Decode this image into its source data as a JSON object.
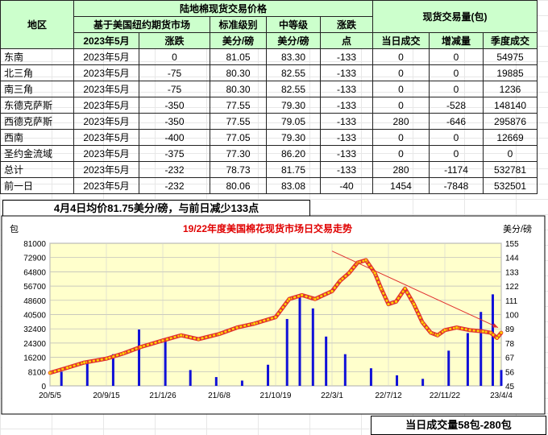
{
  "table": {
    "group1": "陆地棉现货交易价格",
    "group2": "现货交易量(包)",
    "headers1": [
      "地区",
      "基于美国纽约期货市场",
      "标准级别",
      "中等级",
      "涨跌"
    ],
    "headers2": [
      "2023年5月",
      "涨跌",
      "美分/磅",
      "美分/磅",
      "点",
      "当日成交",
      "增减量",
      "季度成交"
    ],
    "rows": [
      [
        "东南",
        "2023年5月",
        "0",
        "81.05",
        "83.30",
        "-133",
        "0",
        "0",
        "54975"
      ],
      [
        "北三角",
        "2023年5月",
        "-75",
        "80.30",
        "82.55",
        "-133",
        "0",
        "0",
        "19885"
      ],
      [
        "南三角",
        "2023年5月",
        "-75",
        "80.30",
        "82.55",
        "-133",
        "0",
        "0",
        "1236"
      ],
      [
        "东德克萨斯",
        "2023年5月",
        "-350",
        "77.55",
        "79.30",
        "-133",
        "0",
        "-528",
        "148140"
      ],
      [
        "西德克萨斯",
        "2023年5月",
        "-350",
        "77.55",
        "79.05",
        "-133",
        "280",
        "-646",
        "295876"
      ],
      [
        "西南",
        "2023年5月",
        "-400",
        "77.05",
        "79.30",
        "-133",
        "0",
        "0",
        "12669"
      ],
      [
        "圣约金流域",
        "2023年5月",
        "-375",
        "77.30",
        "86.20",
        "-133",
        "0",
        "0",
        "0"
      ],
      [
        "总计",
        "2023年5月",
        "-232",
        "78.73",
        "81.75",
        "-133",
        "280",
        "-1174",
        "532781"
      ],
      [
        "前一日",
        "2023年5月",
        "-232",
        "80.06",
        "83.08",
        "-40",
        "1454",
        "-7848",
        "532501"
      ]
    ]
  },
  "note_top": "4月4日均价81.75美分/磅，与前日减少133点",
  "note_bottom": "当日成交量58包-280包",
  "chart_data": {
    "type": "line",
    "title": "19/22年度美国棉花现货市场日交易走势",
    "left_axis_label": "包",
    "right_axis_label": "美分/磅",
    "left_ticks": [
      0,
      8100,
      16200,
      24300,
      32400,
      40500,
      48600,
      56700,
      64800,
      72900,
      81000
    ],
    "right_ticks": [
      45,
      56,
      67,
      78,
      89,
      100,
      111,
      122,
      133,
      144,
      155
    ],
    "left_ylim": [
      0,
      81000
    ],
    "right_ylim": [
      45,
      155
    ],
    "x_ticks": [
      "20/5/5",
      "20/9/15",
      "21/1/26",
      "21/6/8",
      "21/10/19",
      "22/3/1",
      "22/7/12",
      "22/11/22",
      "23/4/4"
    ],
    "x_range": [
      "20/5/5",
      "23/4/4"
    ],
    "grid": true,
    "series": [
      {
        "kind": "price_line",
        "x": [
          "20/5/5",
          "20/6/15",
          "20/7/25",
          "20/9/15",
          "20/10/25",
          "20/12/5",
          "21/1/26",
          "21/3/10",
          "21/4/20",
          "21/6/8",
          "21/7/20",
          "21/8/30",
          "21/10/19",
          "21/11/20",
          "21/12/20",
          "22/1/20",
          "22/3/1",
          "22/3/20",
          "22/4/10",
          "22/4/30",
          "22/5/20",
          "22/6/10",
          "22/6/25",
          "22/7/12",
          "22/7/30",
          "22/8/20",
          "22/9/10",
          "22/9/30",
          "22/10/20",
          "22/11/5",
          "22/11/22",
          "22/12/20",
          "23/1/20",
          "23/2/20",
          "23/3/10",
          "23/3/25",
          "23/4/4"
        ],
        "values": [
          55,
          59,
          63,
          66,
          70,
          75,
          80,
          84,
          81,
          85,
          90,
          93,
          98,
          112,
          115,
          112,
          118,
          126,
          132,
          140,
          142,
          132,
          120,
          108,
          110,
          120,
          108,
          94,
          86,
          84,
          88,
          90,
          88,
          87,
          86,
          82,
          86
        ]
      },
      {
        "kind": "volume_bars",
        "x": [
          "20/6/1",
          "20/8/1",
          "20/10/1",
          "20/12/1",
          "21/2/1",
          "21/4/1",
          "21/6/1",
          "21/8/1",
          "21/10/1",
          "21/11/15",
          "21/12/15",
          "22/1/15",
          "22/2/15",
          "22/4/1",
          "22/6/1",
          "22/8/1",
          "22/10/1",
          "22/12/1",
          "23/1/15",
          "23/2/15",
          "23/3/15",
          "23/4/4"
        ],
        "values": [
          8000,
          14000,
          18000,
          32000,
          26000,
          9000,
          5000,
          3000,
          12000,
          38000,
          52000,
          44000,
          28000,
          18000,
          10000,
          6000,
          4000,
          20000,
          30000,
          42000,
          52000,
          9000
        ]
      }
    ],
    "trend_line": {
      "from": [
        "22/3/1",
        149
      ],
      "to": [
        "23/4/4",
        90
      ]
    }
  },
  "colors": {
    "header_bg": "#ccffcc",
    "plot_bg": "#ffffcc",
    "volume": "#1010d8",
    "price_outer": "#e03030",
    "price_inner": "#ffd400",
    "title": "#e00000",
    "negative": "#1f4fb0"
  }
}
